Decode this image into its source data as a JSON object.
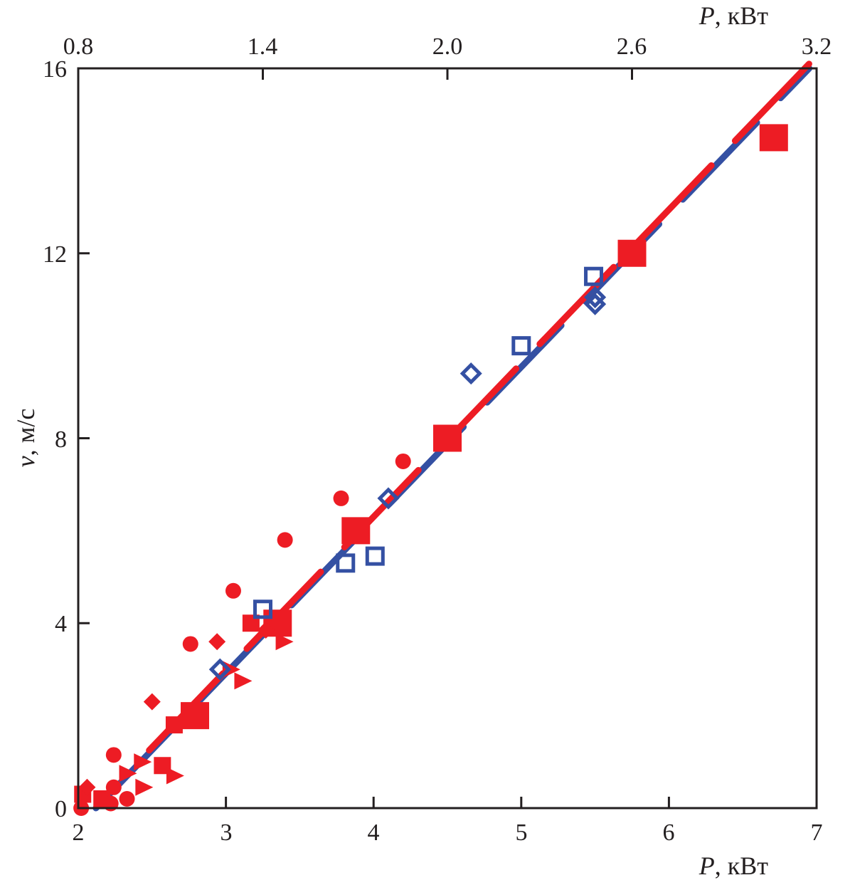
{
  "chart_data": {
    "type": "scatter",
    "title": "",
    "xlabel": "P, кВт",
    "xlabel_italic": "P",
    "xlabel_rest": ", кВт",
    "x2label_italic": "P",
    "x2label_rest": ", кВт",
    "ylabel_italic": "v",
    "ylabel_rest": ", м/с",
    "xlim": [
      2,
      7
    ],
    "x2lim": [
      0.8,
      3.2
    ],
    "ylim": [
      0,
      16
    ],
    "xticks": [
      "2",
      "3",
      "4",
      "5",
      "6",
      "7"
    ],
    "x2ticks": [
      "0.8",
      "1.4",
      "2.0",
      "2.6",
      "3.2"
    ],
    "yticks": [
      "0",
      "4",
      "8",
      "12",
      "16"
    ],
    "grid": false,
    "colors": {
      "red": "#ed1c24",
      "blue": "#3450a3",
      "axis": "#231f20"
    },
    "lines": [
      {
        "name": "red-dashed-fit",
        "color": "red",
        "points": [
          [
            2.48,
            1.25
          ],
          [
            6.95,
            16.1
          ]
        ]
      },
      {
        "name": "blue-dashed-fit",
        "color": "blue",
        "points": [
          [
            2.12,
            0.0
          ],
          [
            6.95,
            16.0
          ]
        ]
      }
    ],
    "series": [
      {
        "name": "red-large-squares",
        "marker": "square-large",
        "color": "red",
        "filled": true,
        "points": [
          [
            2.79,
            2.0
          ],
          [
            3.35,
            4.0
          ],
          [
            3.88,
            6.0
          ],
          [
            4.5,
            8.0
          ],
          [
            5.75,
            12.0
          ],
          [
            6.71,
            14.5
          ]
        ]
      },
      {
        "name": "red-small-squares",
        "marker": "square",
        "color": "red",
        "filled": true,
        "points": [
          [
            2.03,
            0.3
          ],
          [
            2.16,
            0.2
          ],
          [
            2.57,
            0.92
          ],
          [
            2.65,
            1.8
          ],
          [
            3.17,
            4.0
          ]
        ]
      },
      {
        "name": "red-circles",
        "marker": "circle",
        "color": "red",
        "filled": true,
        "points": [
          [
            2.02,
            0.0
          ],
          [
            2.22,
            0.1
          ],
          [
            2.24,
            1.15
          ],
          [
            2.24,
            0.45
          ],
          [
            2.33,
            0.2
          ],
          [
            2.76,
            3.55
          ],
          [
            3.05,
            4.7
          ],
          [
            3.4,
            5.8
          ],
          [
            3.78,
            6.7
          ],
          [
            4.2,
            7.5
          ]
        ]
      },
      {
        "name": "red-diamonds",
        "marker": "diamond",
        "color": "red",
        "filled": true,
        "points": [
          [
            2.06,
            0.45
          ],
          [
            2.5,
            2.3
          ],
          [
            2.94,
            3.6
          ],
          [
            3.27,
            3.85
          ]
        ]
      },
      {
        "name": "red-triangles",
        "marker": "triangle-right",
        "color": "red",
        "filled": true,
        "points": [
          [
            2.33,
            0.75
          ],
          [
            2.43,
            1.0
          ],
          [
            2.44,
            0.45
          ],
          [
            2.65,
            0.7
          ],
          [
            3.03,
            3.0
          ],
          [
            3.11,
            2.75
          ],
          [
            3.39,
            3.6
          ]
        ]
      },
      {
        "name": "blue-open-squares",
        "marker": "square",
        "color": "blue",
        "filled": false,
        "points": [
          [
            3.25,
            4.3
          ],
          [
            3.81,
            5.3
          ],
          [
            4.01,
            5.45
          ],
          [
            5.0,
            10.0
          ],
          [
            5.49,
            11.5
          ]
        ]
      },
      {
        "name": "blue-open-diamonds",
        "marker": "diamond",
        "color": "blue",
        "filled": false,
        "points": [
          [
            2.96,
            3.0
          ],
          [
            4.1,
            6.7
          ],
          [
            4.66,
            9.4
          ],
          [
            5.5,
            11.05
          ],
          [
            5.5,
            10.9
          ]
        ]
      }
    ]
  }
}
